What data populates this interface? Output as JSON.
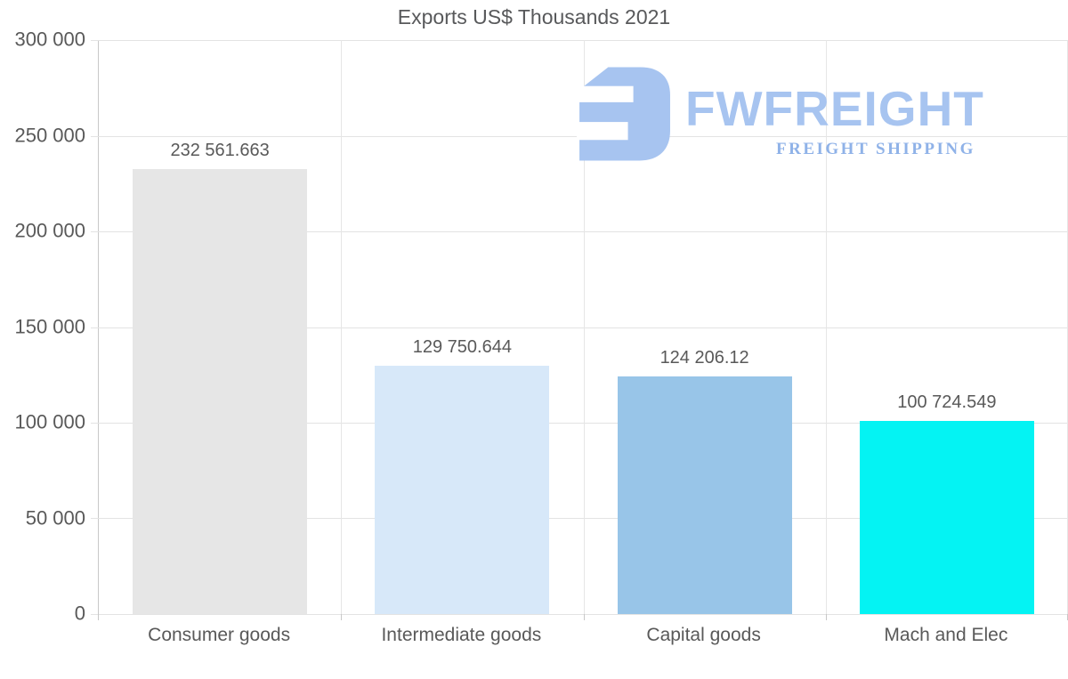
{
  "title": "Exports US$ Thousands 2021",
  "watermark": {
    "brand": "FWFREIGHT",
    "tagline": "FREIGHT SHIPPING",
    "color": "#a7c4f0",
    "tagline_color": "#8fb2e8"
  },
  "chart_data": {
    "type": "bar",
    "title": "Exports US$ Thousands 2021",
    "categories": [
      "Consumer goods",
      "Intermediate goods",
      "Capital goods",
      "Mach and Elec"
    ],
    "values": [
      232561.663,
      129750.644,
      124206.12,
      100724.549
    ],
    "value_labels": [
      "232 561.663",
      "129 750.644",
      "124 206.12",
      "100 724.549"
    ],
    "bar_colors": [
      "#e6e6e6",
      "#d7e8f9",
      "#98c5e8",
      "#04f3f3"
    ],
    "ylim": [
      0,
      300000
    ],
    "ytick_step": 50000,
    "ytick_labels": [
      "300 000",
      "250 000",
      "200 000",
      "150 000",
      "100 000",
      "50 000",
      "0"
    ],
    "xlabel": "",
    "ylabel": "",
    "grid": true,
    "legend": false
  }
}
